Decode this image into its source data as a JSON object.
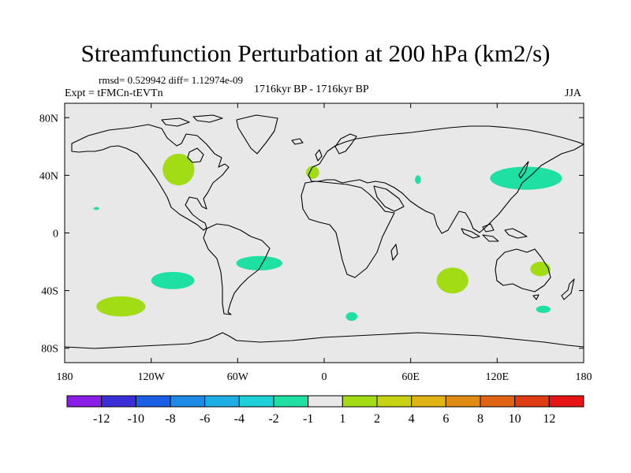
{
  "chart_data": {
    "type": "contour-map",
    "title": "Streamfunction Perturbation at 200 hPa (km2/s)",
    "stats_line": "rmsd= 0.529942 diff= 1.12974e-09",
    "left_label": "Expt = tFMCn-tEVTn",
    "center_label": "1716kyr BP - 1716kyr BP",
    "right_label": "JJA",
    "x_ticks": [
      "180",
      "120W",
      "60W",
      "0",
      "60E",
      "120E",
      "180"
    ],
    "y_ticks": [
      "80N",
      "40N",
      "0",
      "40S",
      "80S"
    ],
    "lon_range": [
      -180,
      180
    ],
    "lat_range": [
      -90,
      90
    ],
    "colorbar": {
      "levels": [
        "-12",
        "-10",
        "-8",
        "-6",
        "-4",
        "-2",
        "-1",
        "1",
        "2",
        "4",
        "6",
        "8",
        "10",
        "12"
      ],
      "colors": [
        "#8a1ee6",
        "#3c2ed6",
        "#1a5ee6",
        "#1e8ae6",
        "#1eaee6",
        "#1ed0d8",
        "#1ee0a2",
        "#e8e8e8",
        "#a2dc14",
        "#c8d214",
        "#e0b414",
        "#e08c14",
        "#e06414",
        "#e03c14",
        "#e61414"
      ]
    },
    "anomalies": [
      {
        "name": "north-america",
        "lon": -101,
        "lat": 44,
        "rlon": 11,
        "rlat": 11,
        "value_class": "1 to 2"
      },
      {
        "name": "iberia",
        "lon": -8,
        "lat": 42,
        "rlon": 4.5,
        "rlat": 4.5,
        "value_class": "1 to 2"
      },
      {
        "name": "central-asia",
        "lon": 65,
        "lat": 37,
        "rlon": 2,
        "rlat": 3,
        "value_class": "-2 to -1"
      },
      {
        "name": "east-asia-north-pacific",
        "lon": 140,
        "lat": 38,
        "rlon": 25,
        "rlat": 8,
        "value_class": "-2 to -1"
      },
      {
        "name": "hawaii",
        "lon": -158,
        "lat": 17,
        "rlon": 2,
        "rlat": 1,
        "value_class": "-2 to -1"
      },
      {
        "name": "south-atlantic",
        "lon": -45,
        "lat": -21,
        "rlon": 16,
        "rlat": 5,
        "value_class": "-2 to -1"
      },
      {
        "name": "se-pacific",
        "lon": -105,
        "lat": -33,
        "rlon": 15,
        "rlat": 6,
        "value_class": "-2 to -1"
      },
      {
        "name": "south-pacific",
        "lon": -141,
        "lat": -51,
        "rlon": 17,
        "rlat": 7,
        "value_class": "1 to 2"
      },
      {
        "name": "indian-ocean",
        "lon": 89,
        "lat": -33,
        "rlon": 11,
        "rlat": 9,
        "value_class": "1 to 2"
      },
      {
        "name": "australia",
        "lon": 150,
        "lat": -25,
        "rlon": 7,
        "rlat": 5,
        "value_class": "1 to 2"
      },
      {
        "name": "south-indian",
        "lon": 19,
        "lat": -58,
        "rlon": 4,
        "rlat": 3,
        "value_class": "-2 to -1"
      },
      {
        "name": "tasman",
        "lon": 152,
        "lat": -53,
        "rlon": 5,
        "rlat": 2.5,
        "value_class": "-2 to -1"
      }
    ]
  }
}
